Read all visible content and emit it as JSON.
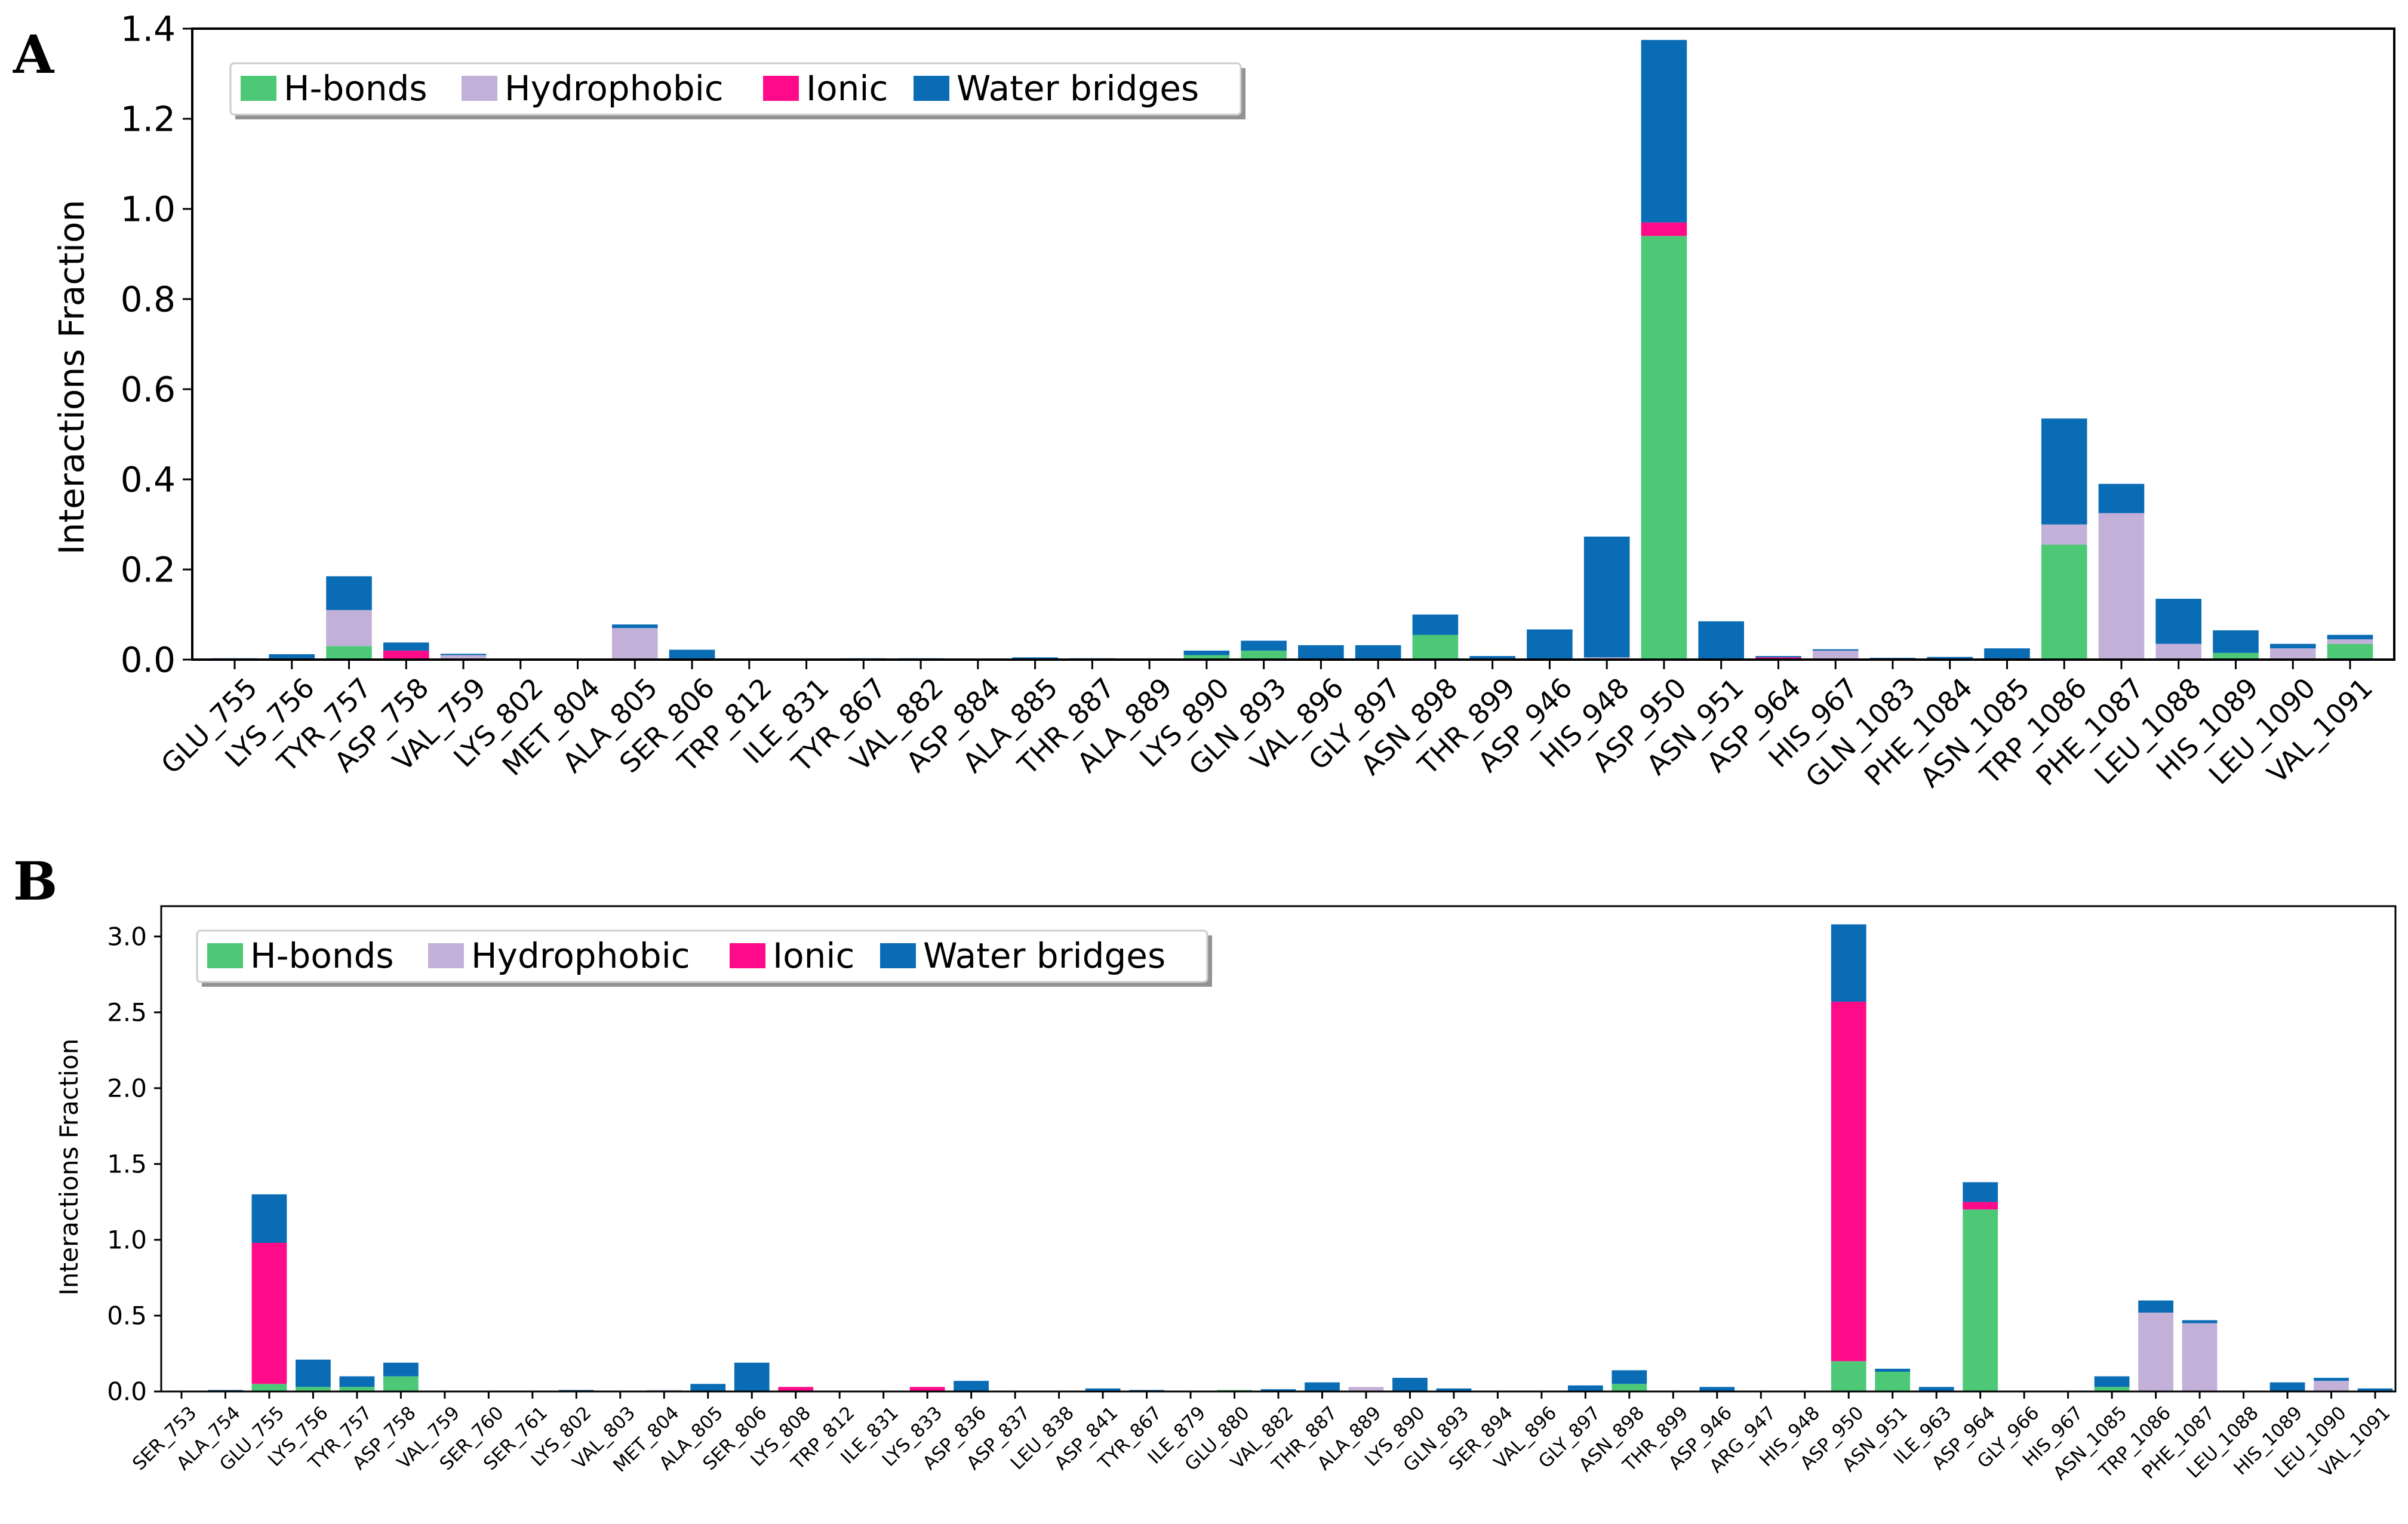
{
  "colors": {
    "hbonds": "#4cc877",
    "hydrophobic": "#c3b0d8",
    "ionic": "#ff0a88",
    "water": "#0a6cb5"
  },
  "chart_data": [
    {
      "panel": "A",
      "type": "bar",
      "stacked": true,
      "title": "",
      "xlabel": "",
      "ylabel": "Interactions Fraction",
      "ylim": [
        0,
        1.4
      ],
      "yticks": [
        0.0,
        0.2,
        0.4,
        0.6,
        0.8,
        1.0,
        1.2,
        1.4
      ],
      "ytick_labels": [
        "0.0",
        "0.2",
        "0.4",
        "0.6",
        "0.8",
        "1.0",
        "1.2",
        "1.4"
      ],
      "legend": [
        "H-bonds",
        "Hydrophobic",
        "Ionic",
        "Water bridges"
      ],
      "legend_position": "top-left",
      "categories": [
        "GLU_755",
        "LYS_756",
        "TYR_757",
        "ASP_758",
        "VAL_759",
        "LYS_802",
        "MET_804",
        "ALA_805",
        "SER_806",
        "TRP_812",
        "ILE_831",
        "TYR_867",
        "VAL_882",
        "ASP_884",
        "ALA_885",
        "THR_887",
        "ALA_889",
        "LYS_890",
        "GLN_893",
        "VAL_896",
        "GLY_897",
        "ASN_898",
        "THR_899",
        "ASP_946",
        "HIS_948",
        "ASP_950",
        "ASN_951",
        "ASP_964",
        "HIS_967",
        "GLN_1083",
        "PHE_1084",
        "ASN_1085",
        "TRP_1086",
        "PHE_1087",
        "LEU_1088",
        "HIS_1089",
        "LEU_1090",
        "VAL_1091"
      ],
      "series": [
        {
          "name": "H-bonds",
          "values": [
            0,
            0,
            0.03,
            0,
            0,
            0,
            0,
            0,
            0,
            0,
            0,
            0,
            0,
            0,
            0,
            0,
            0,
            0.01,
            0.02,
            0,
            0,
            0.055,
            0,
            0,
            0,
            0.94,
            0,
            0,
            0,
            0,
            0,
            0,
            0.255,
            0,
            0,
            0.015,
            0,
            0.035
          ]
        },
        {
          "name": "Hydrophobic",
          "values": [
            0,
            0,
            0.08,
            0,
            0.01,
            0,
            0,
            0.07,
            0,
            0,
            0,
            0,
            0,
            0,
            0,
            0,
            0,
            0,
            0,
            0,
            0,
            0,
            0,
            0,
            0.005,
            0,
            0,
            0,
            0.02,
            0,
            0,
            0,
            0.045,
            0.325,
            0.035,
            0,
            0.025,
            0.01
          ]
        },
        {
          "name": "Ionic",
          "values": [
            0,
            0,
            0,
            0.02,
            0,
            0,
            0,
            0,
            0,
            0,
            0,
            0,
            0,
            0,
            0,
            0,
            0,
            0,
            0,
            0,
            0,
            0,
            0,
            0,
            0,
            0.03,
            0,
            0.005,
            0,
            0,
            0,
            0,
            0,
            0,
            0,
            0,
            0,
            0
          ]
        },
        {
          "name": "Water bridges",
          "values": [
            0.003,
            0.012,
            0.075,
            0.018,
            0.003,
            0,
            0.002,
            0.008,
            0.022,
            0.002,
            0,
            0.003,
            0.003,
            0,
            0.005,
            0.003,
            0,
            0.01,
            0.022,
            0.032,
            0.032,
            0.045,
            0.008,
            0.067,
            0.268,
            0.405,
            0.085,
            0.003,
            0.003,
            0.004,
            0.006,
            0.025,
            0.235,
            0.065,
            0.1,
            0.05,
            0.01,
            0.01
          ]
        }
      ]
    },
    {
      "panel": "B",
      "type": "bar",
      "stacked": true,
      "title": "",
      "xlabel": "",
      "ylabel": "Interactions Fraction",
      "ylim": [
        0,
        3.2
      ],
      "yticks": [
        0.0,
        0.5,
        1.0,
        1.5,
        2.0,
        2.5,
        3.0
      ],
      "ytick_labels": [
        "0.0",
        "0.5",
        "1.0",
        "1.5",
        "2.0",
        "2.5",
        "3.0"
      ],
      "legend": [
        "H-bonds",
        "Hydrophobic",
        "Ionic",
        "Water bridges"
      ],
      "legend_position": "top-left",
      "categories": [
        "SER_753",
        "ALA_754",
        "GLU_755",
        "LYS_756",
        "TYR_757",
        "ASP_758",
        "VAL_759",
        "SER_760",
        "SER_761",
        "LYS_802",
        "VAL_803",
        "MET_804",
        "ALA_805",
        "SER_806",
        "LYS_808",
        "TRP_812",
        "ILE_831",
        "LYS_833",
        "ASP_836",
        "ASP_837",
        "LEU_838",
        "ASP_841",
        "TYR_867",
        "ILE_879",
        "GLU_880",
        "VAL_882",
        "THR_887",
        "ALA_889",
        "LYS_890",
        "GLN_893",
        "SER_894",
        "VAL_896",
        "GLY_897",
        "ASN_898",
        "THR_899",
        "ASP_946",
        "ARG_947",
        "HIS_948",
        "ASP_950",
        "ASN_951",
        "ILE_963",
        "ASP_964",
        "GLY_966",
        "HIS_967",
        "ASN_1085",
        "TRP_1086",
        "PHE_1087",
        "LEU_1088",
        "HIS_1089",
        "LEU_1090",
        "VAL_1091"
      ],
      "series": [
        {
          "name": "H-bonds",
          "values": [
            0,
            0,
            0.05,
            0.03,
            0.03,
            0.1,
            0,
            0,
            0,
            0,
            0,
            0,
            0,
            0,
            0,
            0,
            0,
            0,
            0,
            0,
            0,
            0,
            0,
            0,
            0.01,
            0.005,
            0,
            0,
            0,
            0,
            0,
            0,
            0,
            0.05,
            0,
            0,
            0,
            0,
            0.2,
            0.13,
            0,
            1.2,
            0,
            0,
            0.03,
            0,
            0,
            0,
            0,
            0,
            0
          ]
        },
        {
          "name": "Hydrophobic",
          "values": [
            0,
            0,
            0,
            0,
            0,
            0,
            0,
            0,
            0,
            0,
            0,
            0.01,
            0,
            0,
            0,
            0,
            0,
            0,
            0,
            0,
            0,
            0,
            0,
            0,
            0,
            0,
            0,
            0.03,
            0,
            0,
            0,
            0,
            0,
            0,
            0,
            0,
            0,
            0,
            0,
            0,
            0,
            0,
            0,
            0,
            0,
            0.52,
            0.45,
            0,
            0,
            0.07,
            0
          ]
        },
        {
          "name": "Ionic",
          "values": [
            0,
            0,
            0.93,
            0,
            0,
            0,
            0,
            0,
            0,
            0,
            0,
            0,
            0,
            0,
            0.03,
            0,
            0,
            0.03,
            0,
            0,
            0,
            0,
            0,
            0,
            0,
            0,
            0,
            0,
            0,
            0,
            0,
            0,
            0,
            0,
            0,
            0,
            0,
            0,
            2.37,
            0,
            0,
            0.05,
            0,
            0,
            0,
            0,
            0,
            0,
            0,
            0,
            0
          ]
        },
        {
          "name": "Water bridges",
          "values": [
            0,
            0.01,
            0.32,
            0.18,
            0.07,
            0.09,
            0,
            0,
            0,
            0.01,
            0,
            0,
            0.05,
            0.19,
            0,
            0,
            0,
            0,
            0.07,
            0,
            0,
            0.02,
            0.01,
            0,
            0,
            0.01,
            0.06,
            0,
            0.09,
            0.02,
            0,
            0,
            0.04,
            0.09,
            0,
            0.03,
            0,
            0,
            0.51,
            0.02,
            0.03,
            0.13,
            0,
            0,
            0.07,
            0.08,
            0.02,
            0,
            0.06,
            0.02,
            0.02
          ]
        }
      ]
    }
  ]
}
